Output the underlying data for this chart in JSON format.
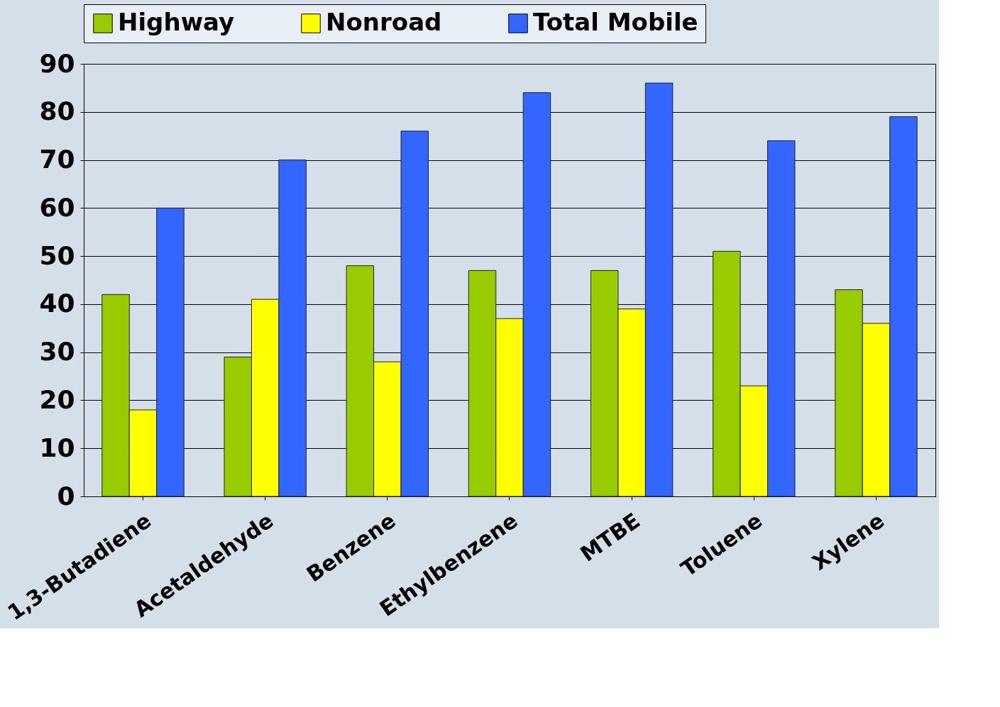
{
  "chart_data": {
    "type": "bar",
    "categories": [
      "1,3-Butadiene",
      "Acetaldehyde",
      "Benzene",
      "Ethylbenzene",
      "MTBE",
      "Toluene",
      "Xylene"
    ],
    "series": [
      {
        "name": "Highway",
        "color": "#99cc00",
        "values": [
          42,
          29,
          48,
          47,
          47,
          51,
          43
        ]
      },
      {
        "name": "Nonroad",
        "color": "#ffff00",
        "values": [
          18,
          41,
          28,
          37,
          39,
          23,
          36
        ]
      },
      {
        "name": "Total Mobile",
        "color": "#3366ff",
        "values": [
          60,
          70,
          76,
          84,
          86,
          74,
          79
        ]
      }
    ],
    "ylim": [
      0,
      90
    ],
    "yticks": [
      0,
      10,
      20,
      30,
      40,
      50,
      60,
      70,
      80,
      90
    ],
    "grid": "y",
    "legend": "top"
  }
}
